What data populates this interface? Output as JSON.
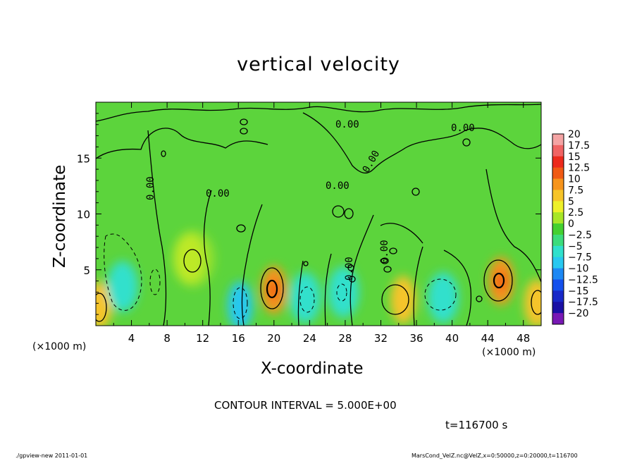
{
  "chart_data": {
    "type": "heatmap",
    "title": "vertical velocity",
    "xlabel": "X-coordinate",
    "ylabel": "Z-coordinate",
    "x_unit_label": "(×1000 m)",
    "y_unit_label": "(×1000 m)",
    "xlim": [
      0,
      50
    ],
    "ylim": [
      0,
      20
    ],
    "x_ticks": [
      4,
      8,
      12,
      16,
      20,
      24,
      28,
      32,
      36,
      40,
      44,
      48
    ],
    "y_ticks": [
      5,
      10,
      15
    ],
    "colorbar": {
      "levels": [
        20,
        17.5,
        15,
        12.5,
        10,
        7.5,
        5,
        2.5,
        0,
        -2.5,
        -5,
        -7.5,
        -10,
        -12.5,
        -15,
        -17.5,
        -20
      ],
      "labels": [
        "20",
        "17.5",
        "15",
        "12.5",
        "10",
        "7.5",
        "5",
        "2.5",
        "0",
        "−2.5",
        "−5",
        "−7.5",
        "−10",
        "−12.5",
        "−15",
        "−17.5",
        "−20"
      ],
      "colors": [
        "#f4a4a4",
        "#f06464",
        "#ec2a1c",
        "#f05a14",
        "#f6941c",
        "#f6c42a",
        "#eef02a",
        "#a8e628",
        "#44d030",
        "#3cdc7c",
        "#30e0cc",
        "#28c8f0",
        "#1c88f4",
        "#1450ec",
        "#1828c8",
        "#1a10a4",
        "#7818b4"
      ]
    },
    "contour_labels": [
      "0.00",
      "0.00",
      "0.00",
      "0.00",
      "0.00",
      "0.00",
      "0.00",
      "0.00"
    ],
    "contour_interval": "CONTOUR INTERVAL = 5.000E+00",
    "time": "t=116700 s",
    "features": [
      {
        "x": 20,
        "z": 3.2,
        "value": 10
      },
      {
        "x": 45.5,
        "z": 4,
        "value": 10
      },
      {
        "x": 0.4,
        "z": 1.8,
        "value": 7.5
      },
      {
        "x": 34.5,
        "z": 2.3,
        "value": 7.5
      },
      {
        "x": 49.5,
        "z": 2,
        "value": 7.5
      },
      {
        "x": 10.5,
        "z": 6,
        "value": 5
      },
      {
        "x": 3,
        "z": 3.5,
        "value": -6
      },
      {
        "x": 16.2,
        "z": 1.8,
        "value": -7.5
      },
      {
        "x": 23.5,
        "z": 2.5,
        "value": -5
      },
      {
        "x": 27.8,
        "z": 3,
        "value": -5
      },
      {
        "x": 39,
        "z": 2.5,
        "value": -5
      }
    ]
  },
  "footer": {
    "left": "./gpview-new  2011-01-01",
    "right": "MarsCond_VelZ.nc@VelZ,x=0:50000,z=0:20000,t=116700"
  }
}
